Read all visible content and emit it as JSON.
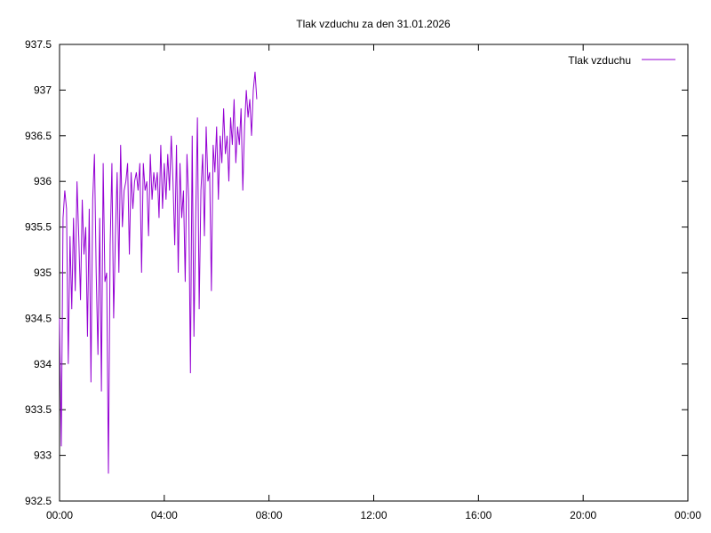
{
  "chart_data": {
    "type": "line",
    "title": "Tlak vzduchu za den 31.01.2026",
    "xlabel": "",
    "ylabel": "",
    "legend": {
      "position": "top-right"
    },
    "grid": false,
    "xlim": [
      "00:00",
      "24:00"
    ],
    "ylim": [
      932.5,
      937.5
    ],
    "x_ticks": [
      "00:00",
      "04:00",
      "08:00",
      "12:00",
      "16:00",
      "20:00",
      "00:00"
    ],
    "y_ticks": [
      "932.5",
      "933",
      "933.5",
      "934",
      "934.5",
      "935",
      "935.5",
      "936",
      "936.5",
      "937",
      "937.5"
    ],
    "colors": {
      "series": "#9400D3",
      "axis": "#000000"
    },
    "series": [
      {
        "name": "Tlak vzduchu",
        "x": [
          "00:00",
          "00:04",
          "00:08",
          "00:12",
          "00:16",
          "00:20",
          "00:24",
          "00:28",
          "00:32",
          "00:36",
          "00:40",
          "00:44",
          "00:48",
          "00:52",
          "00:56",
          "01:00",
          "01:04",
          "01:08",
          "01:12",
          "01:16",
          "01:20",
          "01:24",
          "01:28",
          "01:32",
          "01:36",
          "01:40",
          "01:44",
          "01:48",
          "01:52",
          "01:56",
          "02:00",
          "02:04",
          "02:08",
          "02:12",
          "02:16",
          "02:20",
          "02:24",
          "02:28",
          "02:32",
          "02:36",
          "02:40",
          "02:44",
          "02:48",
          "02:52",
          "02:56",
          "03:00",
          "03:04",
          "03:08",
          "03:12",
          "03:16",
          "03:20",
          "03:24",
          "03:28",
          "03:32",
          "03:36",
          "03:40",
          "03:44",
          "03:48",
          "03:52",
          "03:56",
          "04:00",
          "04:04",
          "04:08",
          "04:12",
          "04:16",
          "04:20",
          "04:24",
          "04:28",
          "04:32",
          "04:36",
          "04:40",
          "04:44",
          "04:48",
          "04:52",
          "04:56",
          "05:00",
          "05:04",
          "05:08",
          "05:12",
          "05:16",
          "05:20",
          "05:24",
          "05:28",
          "05:32",
          "05:36",
          "05:40",
          "05:44",
          "05:48",
          "05:52",
          "05:56",
          "06:00",
          "06:04",
          "06:08",
          "06:12",
          "06:16",
          "06:20",
          "06:24",
          "06:28",
          "06:32",
          "06:36",
          "06:40",
          "06:44",
          "06:48",
          "06:52",
          "06:56",
          "07:00",
          "07:04",
          "07:08",
          "07:12",
          "07:16",
          "07:20",
          "07:24",
          "07:28",
          "07:32"
        ],
        "values": [
          934.5,
          933.1,
          935.6,
          935.9,
          935.7,
          934.0,
          935.4,
          934.6,
          935.6,
          934.8,
          936.0,
          935.4,
          934.7,
          935.8,
          935.2,
          935.5,
          934.3,
          935.7,
          933.8,
          935.8,
          936.3,
          935.0,
          934.1,
          935.6,
          933.7,
          936.2,
          934.9,
          935.0,
          932.8,
          935.3,
          936.2,
          934.5,
          935.4,
          936.1,
          935.0,
          936.4,
          935.5,
          935.9,
          936.0,
          936.2,
          935.2,
          936.1,
          935.7,
          936.0,
          936.1,
          935.9,
          936.2,
          935.0,
          936.2,
          935.9,
          936.0,
          935.4,
          936.3,
          935.8,
          936.1,
          935.9,
          936.1,
          935.6,
          936.4,
          935.7,
          936.2,
          935.8,
          936.3,
          935.9,
          936.5,
          936.0,
          935.3,
          936.4,
          935.0,
          936.2,
          935.6,
          935.9,
          934.9,
          936.3,
          935.8,
          933.9,
          936.5,
          934.3,
          935.6,
          936.7,
          934.6,
          935.9,
          936.3,
          935.4,
          936.6,
          936.0,
          936.1,
          934.8,
          936.4,
          936.1,
          936.6,
          935.8,
          936.5,
          936.2,
          936.8,
          936.3,
          936.5,
          936.0,
          936.7,
          936.4,
          936.9,
          936.2,
          936.6,
          936.4,
          936.8,
          935.9,
          936.6,
          937.0,
          936.7,
          936.9,
          936.5,
          937.0,
          937.2,
          936.9
        ]
      }
    ]
  }
}
